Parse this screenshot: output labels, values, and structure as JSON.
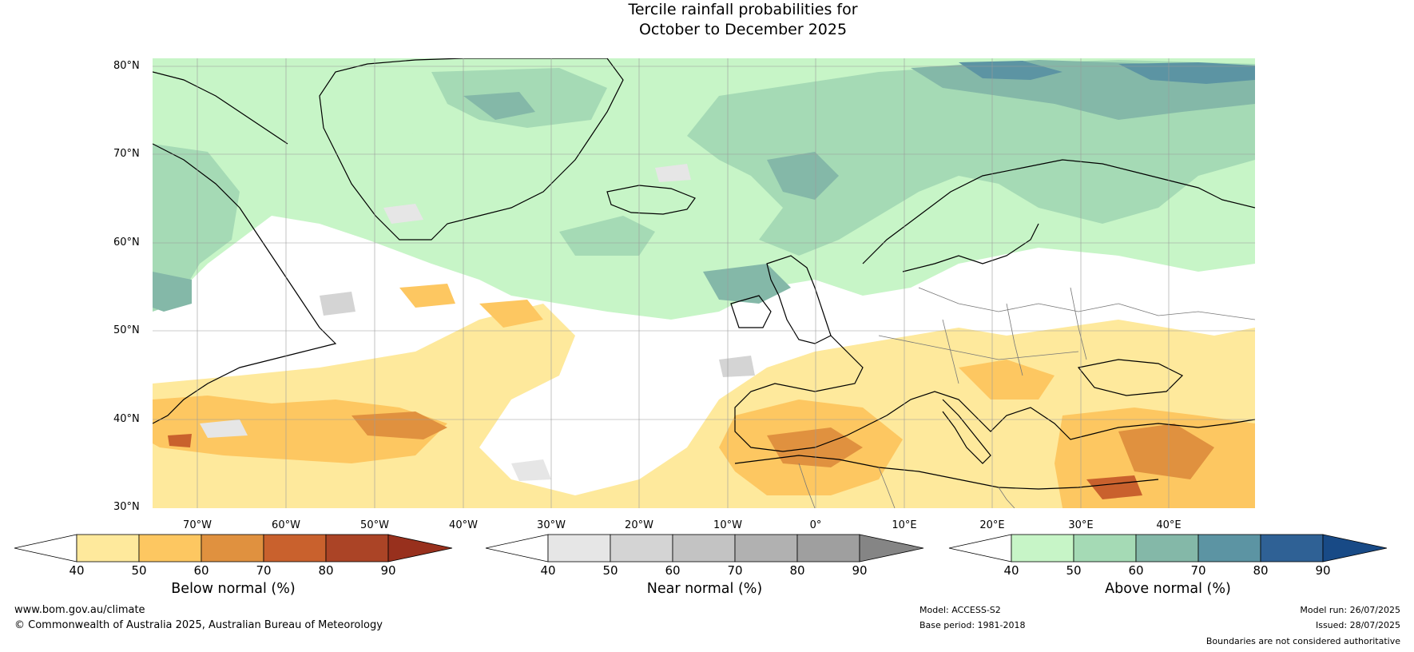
{
  "title": {
    "line1": "Tercile rainfall probabilities for",
    "line2": "October to December 2025"
  },
  "lat_labels": [
    "80°N",
    "70°N",
    "60°N",
    "50°N",
    "40°N",
    "30°N"
  ],
  "lon_labels": [
    "70°W",
    "60°W",
    "50°W",
    "40°W",
    "30°W",
    "20°W",
    "10°W",
    "0°",
    "10°E",
    "20°E",
    "30°E",
    "40°E"
  ],
  "colorbars": [
    {
      "label": "Below normal (%)",
      "ticks": [
        "40",
        "50",
        "60",
        "70",
        "80",
        "90"
      ],
      "colors": [
        "#ffffff",
        "#fee99c",
        "#fdc761",
        "#e0913f",
        "#c9612d",
        "#ab4426",
        "#98301d"
      ]
    },
    {
      "label": "Near normal (%)",
      "ticks": [
        "40",
        "50",
        "60",
        "70",
        "80",
        "90"
      ],
      "colors": [
        "#ffffff",
        "#e6e6e6",
        "#d4d4d4",
        "#c3c3c3",
        "#b1b1b1",
        "#9f9f9f",
        "#858585"
      ]
    },
    {
      "label": "Above normal (%)",
      "ticks": [
        "40",
        "50",
        "60",
        "70",
        "80",
        "90"
      ],
      "colors": [
        "#ffffff",
        "#c7f5c7",
        "#a5dab5",
        "#84b8a8",
        "#5c94a3",
        "#2f6195",
        "#184a86"
      ]
    }
  ],
  "footer": {
    "website": "www.bom.gov.au/climate",
    "copyright": "© Commonwealth of Australia 2025, Australian Bureau of Meteorology",
    "model": "Model: ACCESS-S2",
    "base_period": "Base period: 1981-2018",
    "model_run": "Model run: 26/07/2025",
    "issued": "Issued: 28/07/2025",
    "disclaimer": "Boundaries are not considered authoritative"
  }
}
